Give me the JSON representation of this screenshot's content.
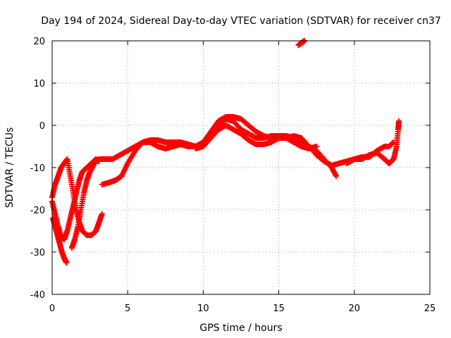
{
  "chart_data": {
    "type": "scatter",
    "title": "Day 194 of 2024, Sidereal Day-to-day VTEC variation (SDTVAR) for receiver cn37",
    "xlabel": "GPS time / hours",
    "ylabel": "SDTVAR / TECUs",
    "xlim": [
      0,
      25
    ],
    "ylim": [
      -40,
      20
    ],
    "x_ticks": [
      0,
      5,
      10,
      15,
      20,
      25
    ],
    "y_ticks": [
      -40,
      -30,
      -20,
      -10,
      0,
      10,
      20
    ],
    "grid": true,
    "marker": "+",
    "series": [
      {
        "name": "track-a",
        "color": "#ff0000",
        "points": [
          [
            0.0,
            -18
          ],
          [
            0.2,
            -21
          ],
          [
            0.4,
            -24
          ],
          [
            0.6,
            -26.5
          ],
          [
            0.8,
            -27
          ],
          [
            1.0,
            -25
          ],
          [
            1.2,
            -22
          ],
          [
            1.4,
            -19
          ],
          [
            1.6,
            -16
          ],
          [
            1.8,
            -13
          ],
          [
            2.0,
            -11
          ],
          [
            2.3,
            -10
          ],
          [
            2.6,
            -9
          ],
          [
            2.9,
            -8
          ],
          [
            3.1,
            -8.5
          ]
        ]
      },
      {
        "name": "track-b",
        "color": "#ff0000",
        "points": [
          [
            0.05,
            -22
          ],
          [
            0.2,
            -24
          ],
          [
            0.35,
            -26
          ],
          [
            0.5,
            -28
          ],
          [
            0.65,
            -30
          ],
          [
            0.8,
            -31.5
          ],
          [
            0.95,
            -32.5
          ]
        ]
      },
      {
        "name": "track-c",
        "color": "#ff0000",
        "points": [
          [
            0.0,
            -17
          ],
          [
            0.2,
            -14
          ],
          [
            0.4,
            -12
          ],
          [
            0.6,
            -10
          ],
          [
            0.8,
            -9
          ],
          [
            1.0,
            -8
          ],
          [
            1.2,
            -12
          ],
          [
            1.4,
            -16
          ],
          [
            1.6,
            -20
          ],
          [
            1.8,
            -23
          ],
          [
            2.0,
            -25
          ],
          [
            2.3,
            -26
          ],
          [
            2.6,
            -26
          ],
          [
            2.9,
            -25
          ],
          [
            3.1,
            -23
          ],
          [
            3.3,
            -21
          ]
        ]
      },
      {
        "name": "track-d",
        "color": "#ff0000",
        "points": [
          [
            1.3,
            -29
          ],
          [
            1.5,
            -27
          ],
          [
            1.7,
            -24
          ],
          [
            1.9,
            -20
          ],
          [
            2.1,
            -16
          ],
          [
            2.3,
            -13
          ],
          [
            2.5,
            -11
          ],
          [
            2.8,
            -9
          ],
          [
            3.1,
            -8
          ],
          [
            3.5,
            -8
          ],
          [
            4.0,
            -8
          ],
          [
            4.5,
            -7
          ],
          [
            5.0,
            -6
          ],
          [
            5.5,
            -5
          ],
          [
            6.0,
            -4
          ],
          [
            6.5,
            -3.5
          ],
          [
            7.0,
            -3.5
          ],
          [
            7.5,
            -4
          ],
          [
            8.0,
            -4
          ],
          [
            8.5,
            -4
          ],
          [
            9.0,
            -4.5
          ],
          [
            9.5,
            -5
          ],
          [
            10.0,
            -4
          ],
          [
            10.5,
            -2
          ],
          [
            11.0,
            0
          ],
          [
            11.5,
            1.5
          ],
          [
            12.0,
            1
          ],
          [
            12.5,
            -1
          ],
          [
            13.0,
            -2
          ],
          [
            13.5,
            -3
          ],
          [
            14.0,
            -3
          ],
          [
            14.5,
            -2.5
          ],
          [
            15.0,
            -2.5
          ],
          [
            15.5,
            -2.5
          ],
          [
            16.0,
            -3
          ],
          [
            16.5,
            -4
          ],
          [
            17.0,
            -5
          ],
          [
            17.5,
            -6
          ],
          [
            18.0,
            -8
          ],
          [
            18.5,
            -10
          ],
          [
            18.8,
            -12
          ]
        ]
      },
      {
        "name": "track-e",
        "color": "#ff0000",
        "points": [
          [
            3.3,
            -14
          ],
          [
            3.8,
            -13.5
          ],
          [
            4.2,
            -13
          ],
          [
            4.6,
            -12
          ],
          [
            5.0,
            -9
          ],
          [
            5.5,
            -6
          ],
          [
            6.0,
            -4
          ],
          [
            6.5,
            -4
          ],
          [
            7.0,
            -5
          ],
          [
            7.5,
            -5.5
          ],
          [
            8.0,
            -5
          ],
          [
            8.5,
            -4.5
          ],
          [
            9.0,
            -5
          ],
          [
            9.5,
            -5
          ],
          [
            10.0,
            -4
          ],
          [
            10.5,
            -1.5
          ],
          [
            11.0,
            1
          ],
          [
            11.5,
            2
          ],
          [
            12.0,
            2
          ],
          [
            12.5,
            1.5
          ],
          [
            13.0,
            0
          ],
          [
            13.5,
            -1.5
          ],
          [
            14.0,
            -2.5
          ],
          [
            14.5,
            -3
          ],
          [
            15.0,
            -3
          ],
          [
            15.5,
            -3
          ],
          [
            16.0,
            -2.5
          ],
          [
            16.5,
            -3
          ],
          [
            17.0,
            -5
          ],
          [
            17.5,
            -7
          ],
          [
            18.0,
            -8.5
          ],
          [
            18.5,
            -9.5
          ],
          [
            19.0,
            -9
          ],
          [
            19.5,
            -8.5
          ],
          [
            20.0,
            -8
          ],
          [
            20.5,
            -7.5
          ],
          [
            21.0,
            -7.5
          ],
          [
            21.5,
            -6
          ],
          [
            22.0,
            -5
          ],
          [
            22.3,
            -5
          ],
          [
            22.6,
            -4
          ]
        ]
      },
      {
        "name": "track-f",
        "color": "#ff0000",
        "points": [
          [
            9.5,
            -5.5
          ],
          [
            10.0,
            -5
          ],
          [
            10.5,
            -3
          ],
          [
            11.0,
            -1
          ],
          [
            11.5,
            0
          ],
          [
            12.0,
            -1
          ],
          [
            12.5,
            -2
          ],
          [
            13.0,
            -3.5
          ],
          [
            13.5,
            -4.5
          ],
          [
            14.0,
            -4.5
          ],
          [
            14.5,
            -4
          ],
          [
            15.0,
            -3
          ],
          [
            15.5,
            -3
          ],
          [
            16.0,
            -4
          ],
          [
            16.5,
            -5
          ],
          [
            17.0,
            -5.5
          ],
          [
            17.5,
            -5
          ]
        ]
      },
      {
        "name": "track-g",
        "color": "#ff0000",
        "points": [
          [
            19.5,
            -9
          ],
          [
            20.0,
            -8
          ],
          [
            20.5,
            -8
          ],
          [
            21.0,
            -7
          ],
          [
            21.5,
            -6.5
          ],
          [
            22.0,
            -8
          ],
          [
            22.3,
            -9
          ],
          [
            22.6,
            -8
          ],
          [
            22.8,
            -5
          ],
          [
            22.9,
            -1
          ],
          [
            22.95,
            1
          ]
        ]
      },
      {
        "name": "track-h",
        "color": "#ff0000",
        "points": [
          [
            16.3,
            19
          ],
          [
            16.5,
            19.5
          ],
          [
            16.7,
            20
          ]
        ]
      }
    ]
  }
}
